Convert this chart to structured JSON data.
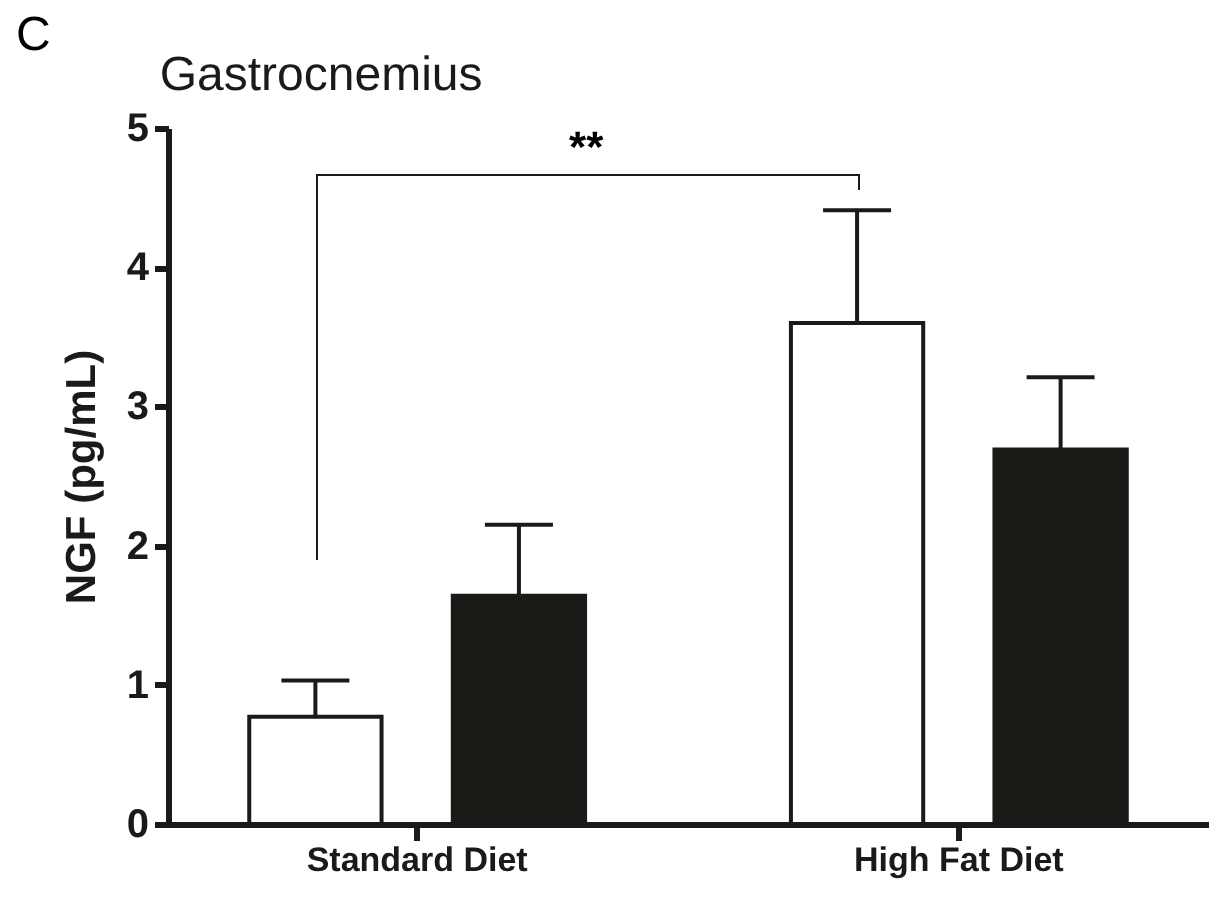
{
  "chart_data": {
    "type": "bar",
    "title": "Gastrocnemius",
    "ylabel": "NGF (pg/mL)",
    "categories": [
      "Standard Diet",
      "High Fat Diet"
    ],
    "series": [
      {
        "color": "#ffffff",
        "values": [
          0.77,
          3.6
        ],
        "errors": [
          [
            0.77,
            1.03
          ],
          [
            3.6,
            4.41
          ]
        ]
      },
      {
        "color": "#1c1a17",
        "values": [
          1.64,
          2.69
        ],
        "errors": [
          [
            1.64,
            2.15
          ],
          [
            2.69,
            3.21
          ]
        ]
      }
    ],
    "ylim": [
      0,
      5
    ],
    "yticks": [
      0,
      1,
      2,
      3,
      4,
      5
    ],
    "grid": false,
    "legend": false,
    "annotations": [
      "C",
      "**"
    ]
  }
}
